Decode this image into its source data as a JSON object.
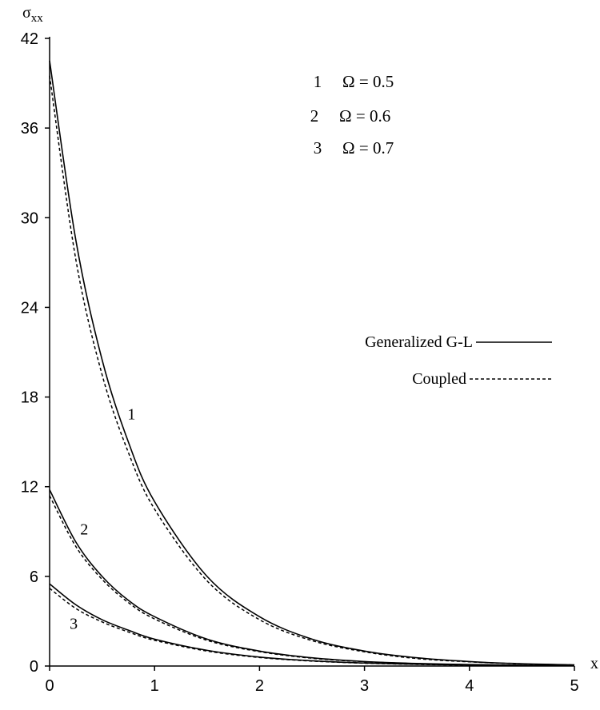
{
  "chart_data": {
    "type": "line",
    "xlabel": "x",
    "ylabel_base": "σ",
    "ylabel_sub": "xx",
    "xlim": [
      0,
      5
    ],
    "ylim": [
      0,
      42
    ],
    "x_ticks": [
      0,
      1,
      2,
      3,
      4,
      5
    ],
    "y_ticks": [
      0,
      6,
      12,
      18,
      24,
      30,
      36,
      42
    ],
    "legend_params": [
      {
        "num": "1",
        "text": "Ω = 0.5"
      },
      {
        "num": "2",
        "text": "Ω = 0.6"
      },
      {
        "num": "3",
        "text": "Ω = 0.7"
      }
    ],
    "legend_styles": [
      {
        "label": "Generalized G-L",
        "style": "solid"
      },
      {
        "label": "Coupled",
        "style": "dashed"
      }
    ],
    "curve_labels": [
      {
        "text": "1",
        "x": 0.78,
        "y": 16.5
      },
      {
        "text": "2",
        "x": 0.33,
        "y": 8.8
      },
      {
        "text": "3",
        "x": 0.23,
        "y": 2.5
      }
    ],
    "series": [
      {
        "name": "1",
        "style": "solid",
        "x": [
          0,
          0.25,
          0.5,
          0.75,
          1.0,
          1.5,
          2.0,
          2.5,
          3.0,
          3.5,
          4.0,
          4.5,
          5.0
        ],
        "y": [
          40.5,
          28.5,
          20.5,
          15.0,
          11.0,
          6.0,
          3.3,
          1.8,
          1.0,
          0.55,
          0.3,
          0.15,
          0.08
        ]
      },
      {
        "name": "1",
        "style": "dashed",
        "x": [
          0,
          0.25,
          0.5,
          0.75,
          1.0,
          1.5,
          2.0,
          2.5,
          3.0,
          3.5,
          4.0,
          4.5,
          5.0
        ],
        "y": [
          39.5,
          27.2,
          19.5,
          14.3,
          10.5,
          5.7,
          3.1,
          1.7,
          0.95,
          0.5,
          0.28,
          0.14,
          0.07
        ]
      },
      {
        "name": "2",
        "style": "solid",
        "x": [
          0,
          0.25,
          0.5,
          0.75,
          1.0,
          1.5,
          2.0,
          2.5,
          3.0,
          3.5,
          4.0,
          4.5,
          5.0
        ],
        "y": [
          11.8,
          8.3,
          6.0,
          4.4,
          3.3,
          1.8,
          1.0,
          0.55,
          0.3,
          0.17,
          0.1,
          0.05,
          0.03
        ]
      },
      {
        "name": "2",
        "style": "dashed",
        "x": [
          0,
          0.25,
          0.5,
          0.75,
          1.0,
          1.5,
          2.0,
          2.5,
          3.0,
          3.5,
          4.0,
          4.5,
          5.0
        ],
        "y": [
          11.4,
          8.0,
          5.8,
          4.25,
          3.15,
          1.72,
          0.96,
          0.52,
          0.29,
          0.16,
          0.09,
          0.05,
          0.03
        ]
      },
      {
        "name": "3",
        "style": "solid",
        "x": [
          0,
          0.25,
          0.5,
          0.75,
          1.0,
          1.5,
          2.0,
          2.5,
          3.0,
          3.5,
          4.0,
          4.5,
          5.0
        ],
        "y": [
          5.5,
          4.1,
          3.1,
          2.4,
          1.8,
          1.05,
          0.6,
          0.35,
          0.2,
          0.12,
          0.07,
          0.04,
          0.02
        ]
      },
      {
        "name": "3",
        "style": "dashed",
        "x": [
          0,
          0.25,
          0.5,
          0.75,
          1.0,
          1.5,
          2.0,
          2.5,
          3.0,
          3.5,
          4.0,
          4.5,
          5.0
        ],
        "y": [
          5.2,
          3.85,
          2.95,
          2.28,
          1.72,
          1.0,
          0.57,
          0.33,
          0.19,
          0.11,
          0.06,
          0.035,
          0.02
        ]
      }
    ]
  }
}
